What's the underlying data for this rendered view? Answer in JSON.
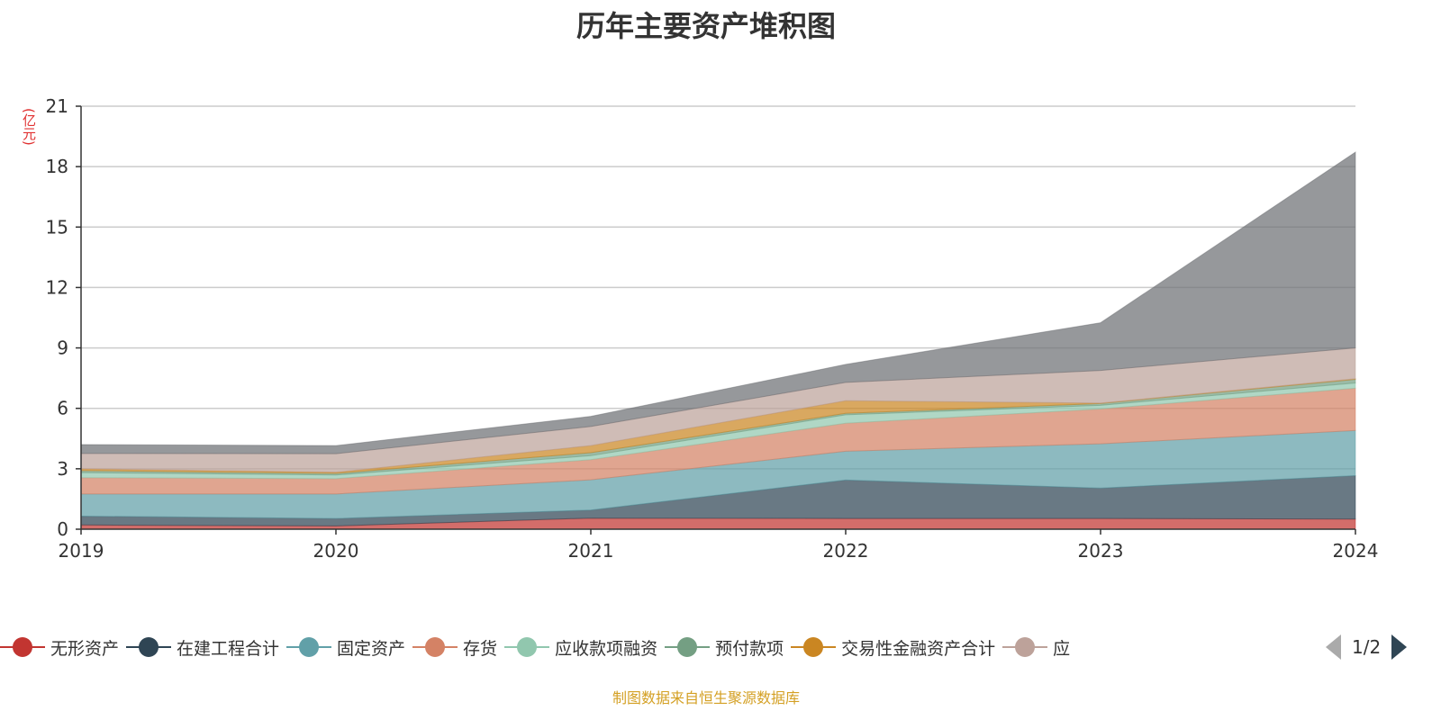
{
  "chart_data": {
    "type": "area",
    "stacked": true,
    "title": "历年主要资产堆积图",
    "ylabel": "(亿元)",
    "xlabel": "",
    "categories": [
      "2019",
      "2020",
      "2021",
      "2022",
      "2023",
      "2024"
    ],
    "ylim": [
      0,
      21
    ],
    "yticks": [
      0,
      3,
      6,
      9,
      12,
      15,
      18,
      21
    ],
    "grid": true,
    "legend_position": "bottom",
    "legend_page": "1/2",
    "series": [
      {
        "name": "无形资产",
        "color": "#c23531",
        "values": [
          0.21,
          0.16,
          0.55,
          0.53,
          0.53,
          0.5
        ]
      },
      {
        "name": "在建工程合计",
        "color": "#2f4554",
        "values": [
          0.44,
          0.37,
          0.4,
          1.91,
          1.51,
          2.16
        ]
      },
      {
        "name": "固定资产",
        "color": "#61a0a8",
        "values": [
          1.1,
          1.22,
          1.5,
          1.43,
          2.2,
          2.24
        ]
      },
      {
        "name": "存货",
        "color": "#d48265",
        "values": [
          0.81,
          0.76,
          1.0,
          1.39,
          1.73,
          2.1
        ]
      },
      {
        "name": "应收款项融资",
        "color": "#91c7ae",
        "values": [
          0.25,
          0.18,
          0.2,
          0.42,
          0.18,
          0.26
        ]
      },
      {
        "name": "预付款项",
        "color": "#749f83",
        "values": [
          0.1,
          0.08,
          0.15,
          0.07,
          0.09,
          0.18
        ]
      },
      {
        "name": "交易性金融资产合计",
        "color": "#ca8622",
        "values": [
          0.09,
          0.06,
          0.35,
          0.63,
          0.02,
          0.03
        ]
      },
      {
        "name": "应",
        "color": "#bda29a",
        "values": [
          0.76,
          0.92,
          0.95,
          0.91,
          1.62,
          1.53
        ]
      },
      {
        "color": "#6e7074",
        "values": [
          0.44,
          0.4,
          0.5,
          0.89,
          2.37,
          9.72
        ]
      }
    ]
  },
  "source": "制图数据来自恒生聚源数据库"
}
